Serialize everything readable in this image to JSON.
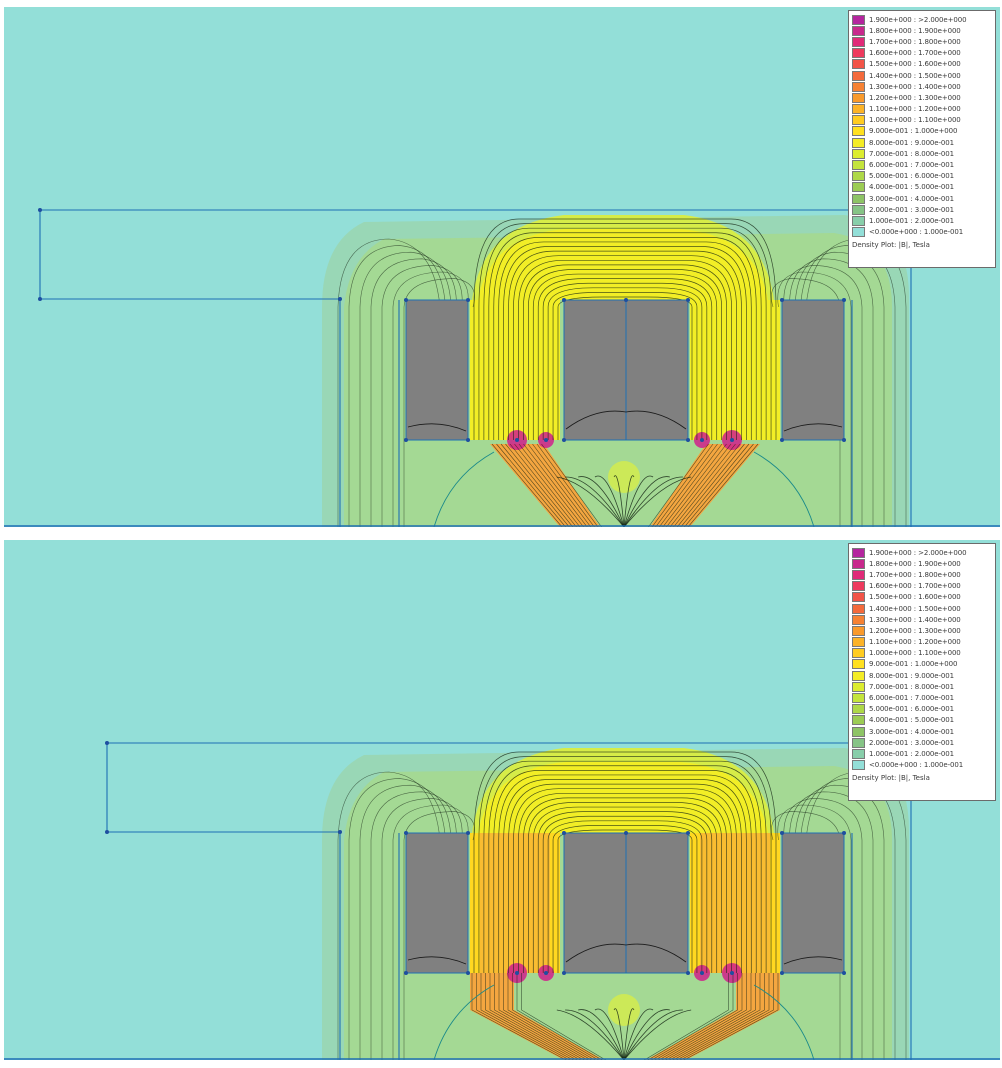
{
  "palette": {
    "background": "#93dfd8",
    "iron_core": "#808080",
    "boundary_line": "#1e6fb4",
    "flux_line": "#102010",
    "node": "#1e4fa0",
    "bands": [
      "#93dfd8",
      "#9ad6b0",
      "#a8da88",
      "#bde46a",
      "#d6ec48",
      "#f2ee26",
      "#ffd820",
      "#f4a640",
      "#e95d52",
      "#d0208c"
    ]
  },
  "legend": {
    "entries": [
      {
        "range": "1.900e+000 : >2.000e+000",
        "color": "#b4259e"
      },
      {
        "range": "1.800e+000 : 1.900e+000",
        "color": "#c8288c"
      },
      {
        "range": "1.700e+000 : 1.800e+000",
        "color": "#e02a78"
      },
      {
        "range": "1.600e+000 : 1.700e+000",
        "color": "#ee3a5e"
      },
      {
        "range": "1.500e+000 : 1.600e+000",
        "color": "#f25448"
      },
      {
        "range": "1.400e+000 : 1.500e+000",
        "color": "#f46a3c"
      },
      {
        "range": "1.300e+000 : 1.400e+000",
        "color": "#f68234"
      },
      {
        "range": "1.200e+000 : 1.300e+000",
        "color": "#f99a2c"
      },
      {
        "range": "1.100e+000 : 1.200e+000",
        "color": "#fcb328"
      },
      {
        "range": "1.000e+000 : 1.100e+000",
        "color": "#ffcc22"
      },
      {
        "range": "9.000e-001 : 1.000e+000",
        "color": "#ffe020"
      },
      {
        "range": "8.000e-001 : 9.000e-001",
        "color": "#f4ec26"
      },
      {
        "range": "7.000e-001 : 8.000e-001",
        "color": "#dcec30"
      },
      {
        "range": "6.000e-001 : 7.000e-001",
        "color": "#c4e43c"
      },
      {
        "range": "5.000e-001 : 6.000e-001",
        "color": "#aed848"
      },
      {
        "range": "4.000e-001 : 5.000e-001",
        "color": "#9ccc54"
      },
      {
        "range": "3.000e-001 : 4.000e-001",
        "color": "#8ec466"
      },
      {
        "range": "2.000e-001 : 3.000e-001",
        "color": "#86c486"
      },
      {
        "range": "1.000e-001 : 2.000e-001",
        "color": "#88ceaa"
      },
      {
        "range": "<0.000e+000 : 1.000e-001",
        "color": "#93dfd8"
      }
    ],
    "caption": "Density Plot: |B|, Tesla"
  },
  "panels": [
    {
      "id": "top",
      "variant": "v-shaped pole shoes"
    },
    {
      "id": "bottom",
      "variant": "extended pole shoes"
    }
  ]
}
